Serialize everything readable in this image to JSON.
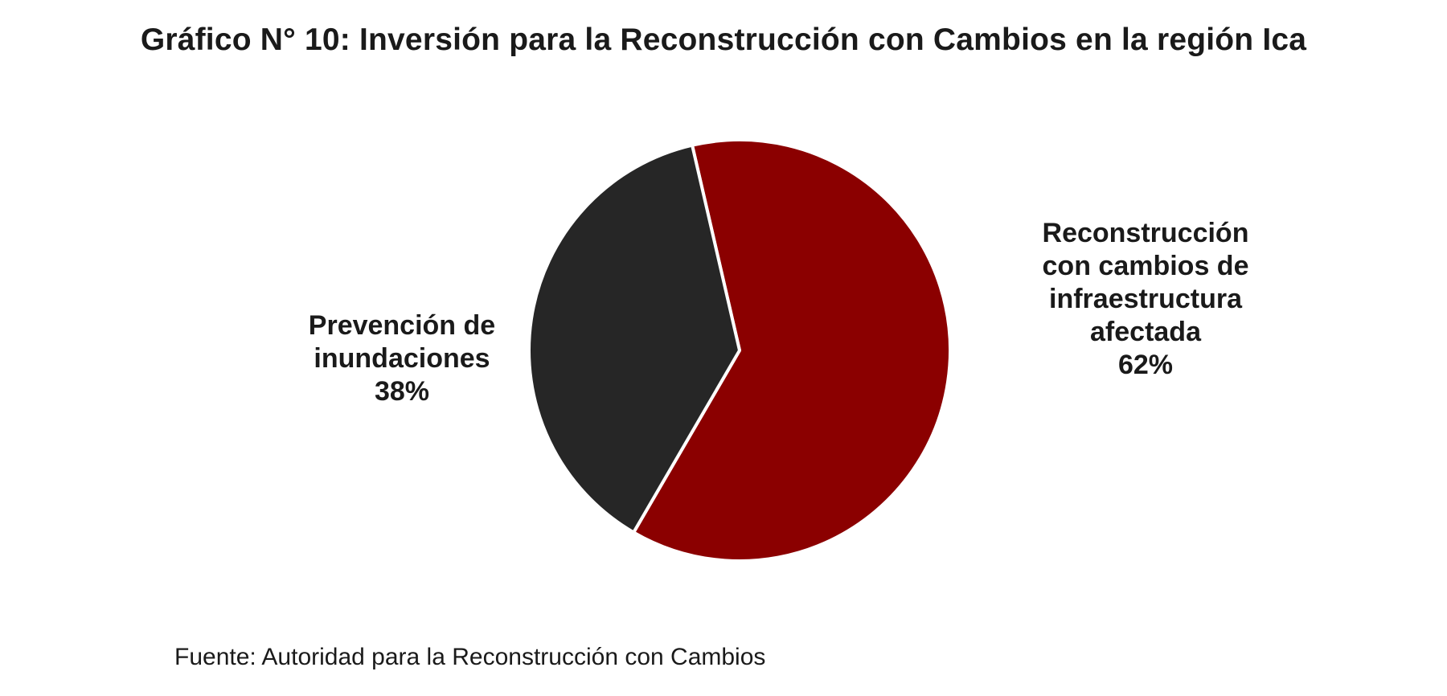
{
  "chart_data": {
    "type": "pie",
    "title": "Gráfico N° 10: Inversión para la Reconstrucción con Cambios en la región Ica",
    "slices": [
      {
        "label_lines": [
          "Reconstrucción",
          "con cambios de",
          "infraestructura",
          "afectada"
        ],
        "value": 62,
        "value_label": "62%",
        "color": "#8b0000"
      },
      {
        "label_lines": [
          "Prevención de",
          "inundaciones"
        ],
        "value": 38,
        "value_label": "38%",
        "color": "#262626"
      }
    ],
    "start_angle_deg": -13,
    "direction": "clockwise",
    "separator_color": "#ffffff",
    "legend": "none",
    "source": "Fuente: Autoridad para la Reconstrucción con Cambios"
  }
}
